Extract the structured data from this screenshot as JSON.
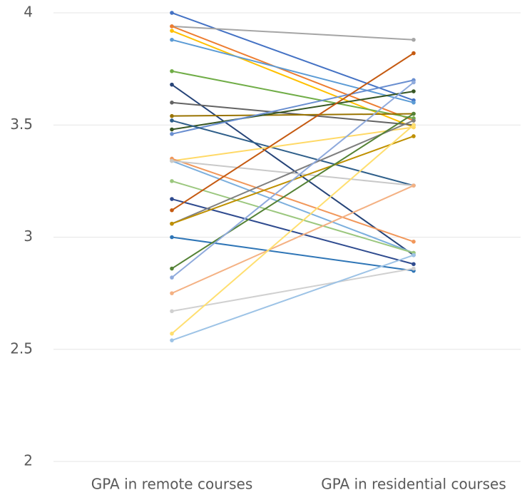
{
  "chart_data": {
    "type": "line",
    "categories": [
      "GPA in remote courses",
      "GPA in residential courses"
    ],
    "ylim": [
      2,
      4
    ],
    "yticks": [
      2,
      2.5,
      3,
      3.5,
      4
    ],
    "grid": true,
    "series": [
      {
        "color": "#4472c4",
        "values": [
          4.0,
          3.61
        ]
      },
      {
        "color": "#a5a5a5",
        "values": [
          3.94,
          3.88
        ]
      },
      {
        "color": "#ed7d31",
        "values": [
          3.94,
          3.52
        ]
      },
      {
        "color": "#ffc000",
        "values": [
          3.92,
          3.49
        ]
      },
      {
        "color": "#5b9bd5",
        "values": [
          3.88,
          3.6
        ]
      },
      {
        "color": "#70ad47",
        "values": [
          3.74,
          3.53
        ]
      },
      {
        "color": "#264478",
        "values": [
          3.68,
          2.92
        ]
      },
      {
        "color": "#636363",
        "values": [
          3.6,
          3.5
        ]
      },
      {
        "color": "#997300",
        "values": [
          3.54,
          3.55
        ]
      },
      {
        "color": "#375623",
        "values": [
          3.48,
          3.65
        ]
      },
      {
        "color": "#698ed0",
        "values": [
          3.46,
          3.7
        ]
      },
      {
        "color": "#2f5f8a",
        "values": [
          3.52,
          3.23
        ]
      },
      {
        "color": "#ffd966",
        "values": [
          3.34,
          3.49
        ]
      },
      {
        "color": "#7cafdd",
        "values": [
          3.34,
          2.93
        ]
      },
      {
        "color": "#f1975a",
        "values": [
          3.35,
          2.98
        ]
      },
      {
        "color": "#c9c9c9",
        "values": [
          3.34,
          3.23
        ]
      },
      {
        "color": "#9bc77e",
        "values": [
          3.25,
          2.93
        ]
      },
      {
        "color": "#2f4b8f",
        "values": [
          3.17,
          2.88
        ]
      },
      {
        "color": "#c55a11",
        "values": [
          3.12,
          3.82
        ]
      },
      {
        "color": "#7f7f7f",
        "values": [
          3.06,
          3.52
        ]
      },
      {
        "color": "#bf9000",
        "values": [
          3.06,
          3.45
        ]
      },
      {
        "color": "#2e75b6",
        "values": [
          3.0,
          2.85
        ]
      },
      {
        "color": "#548235",
        "values": [
          2.86,
          3.55
        ]
      },
      {
        "color": "#8faadc",
        "values": [
          2.82,
          3.69
        ]
      },
      {
        "color": "#f4b183",
        "values": [
          2.75,
          3.23
        ]
      },
      {
        "color": "#d0d0d0",
        "values": [
          2.67,
          2.86
        ]
      },
      {
        "color": "#ffdf70",
        "values": [
          2.57,
          3.5
        ]
      },
      {
        "color": "#9dc3e6",
        "values": [
          2.54,
          2.92
        ]
      }
    ]
  }
}
